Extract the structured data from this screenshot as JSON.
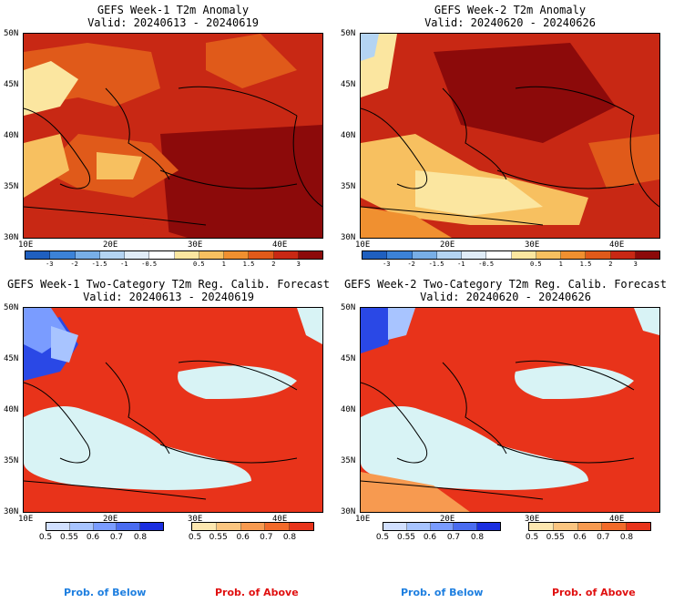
{
  "panels": [
    {
      "title1": "GEFS Week-1 T2m Anomaly",
      "title2": "Valid: 20240613 - 20240619"
    },
    {
      "title1": "GEFS Week-2 T2m Anomaly",
      "title2": "Valid: 20240620 - 20240626"
    },
    {
      "title1": "GEFS Week-1 Two-Category T2m Reg. Calib. Forecast",
      "title2": "Valid: 20240613 - 20240619"
    },
    {
      "title1": "GEFS Week-2 Two-Category T2m Reg. Calib. Forecast",
      "title2": "Valid: 20240620 - 20240626"
    }
  ],
  "axes": {
    "lat_labels": [
      "50N",
      "45N",
      "40N",
      "35N",
      "30N"
    ],
    "lon_labels": [
      "10E",
      "20E",
      "30E",
      "40E"
    ]
  },
  "anomaly_colorbar": {
    "ticks": [
      "-3",
      "-2",
      "-1.5",
      "-1",
      "-0.5",
      "0.5",
      "1",
      "1.5",
      "2",
      "3"
    ],
    "colors": [
      "#1f5fbf",
      "#3c82d7",
      "#78aee6",
      "#b4d4f2",
      "#e0ecf7",
      "#ffffff",
      "#fbe6a0",
      "#f7c060",
      "#f09030",
      "#e05a1a",
      "#c82814",
      "#8c0a0a"
    ]
  },
  "prob_colorbars": {
    "below_ticks": [
      "0.5",
      "0.55",
      "0.6",
      "0.7",
      "0.8"
    ],
    "below_colors": [
      "#d2e0ff",
      "#a8c4ff",
      "#7a9cff",
      "#4a6cf0",
      "#1a2ee0"
    ],
    "above_ticks": [
      "0.5",
      "0.55",
      "0.6",
      "0.7",
      "0.8"
    ],
    "above_colors": [
      "#fde7b0",
      "#fbc580",
      "#f79a50",
      "#f26a2a",
      "#e8331a"
    ],
    "below_label": "Prob. of Below",
    "above_label": "Prob. of Above",
    "below_label_color": "#1e7fe0",
    "above_label_color": "#e01010"
  },
  "map_colors": {
    "sea_prob": "#d8f3f5",
    "anom_hot": "#8c0a0a",
    "anom_red": "#c82814",
    "anom_orange": "#e05a1a",
    "anom_light": "#f7c060",
    "anom_pale": "#fbe6a0",
    "prob_above": "#e8331a",
    "prob_below": "#2a48e6"
  }
}
